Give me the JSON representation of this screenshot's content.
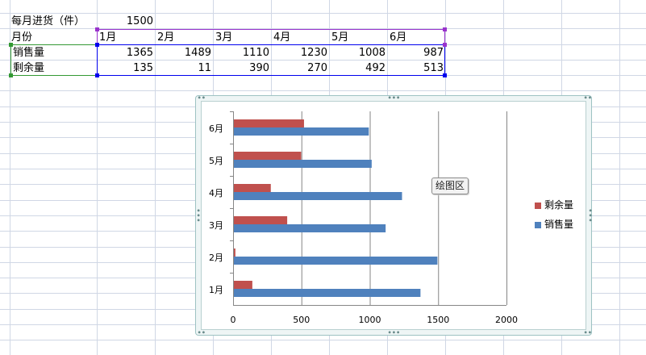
{
  "sheet": {
    "rows": [
      {
        "name": "header-row-a",
        "label": "每月进货（件）",
        "values": [
          "1500"
        ]
      },
      {
        "name": "header-row-b",
        "label": "月份",
        "values": [
          "1月",
          "2月",
          "3月",
          "4月",
          "5月",
          "6月"
        ]
      },
      {
        "name": "sales-row",
        "label": "销售量",
        "values": [
          "1365",
          "1489",
          "1110",
          "1230",
          "1008",
          "987"
        ]
      },
      {
        "name": "remain-row",
        "label": "剩余量",
        "values": [
          "135",
          "11",
          "390",
          "270",
          "492",
          "513"
        ]
      }
    ]
  },
  "tooltip": "绘图区",
  "colors": {
    "sales": "#4f81bd",
    "remain": "#c0504d",
    "grid_line": "#d0d7e5",
    "range_purple": "#9933cc",
    "range_green": "#339933",
    "range_blue": "#0000ee"
  },
  "chart_data": {
    "type": "bar",
    "orientation": "horizontal",
    "categories": [
      "1月",
      "2月",
      "3月",
      "4月",
      "5月",
      "6月"
    ],
    "series": [
      {
        "name": "剩余量",
        "values": [
          135,
          11,
          390,
          270,
          492,
          513
        ]
      },
      {
        "name": "销售量",
        "values": [
          1365,
          1489,
          1110,
          1230,
          1008,
          987
        ]
      }
    ],
    "xlim": [
      0,
      2000
    ],
    "xticks": [
      "0",
      "500",
      "1000",
      "1500",
      "2000"
    ],
    "grid": "vertical",
    "legend": {
      "placement": "right",
      "entries": [
        "剩余量",
        "销售量"
      ]
    }
  }
}
